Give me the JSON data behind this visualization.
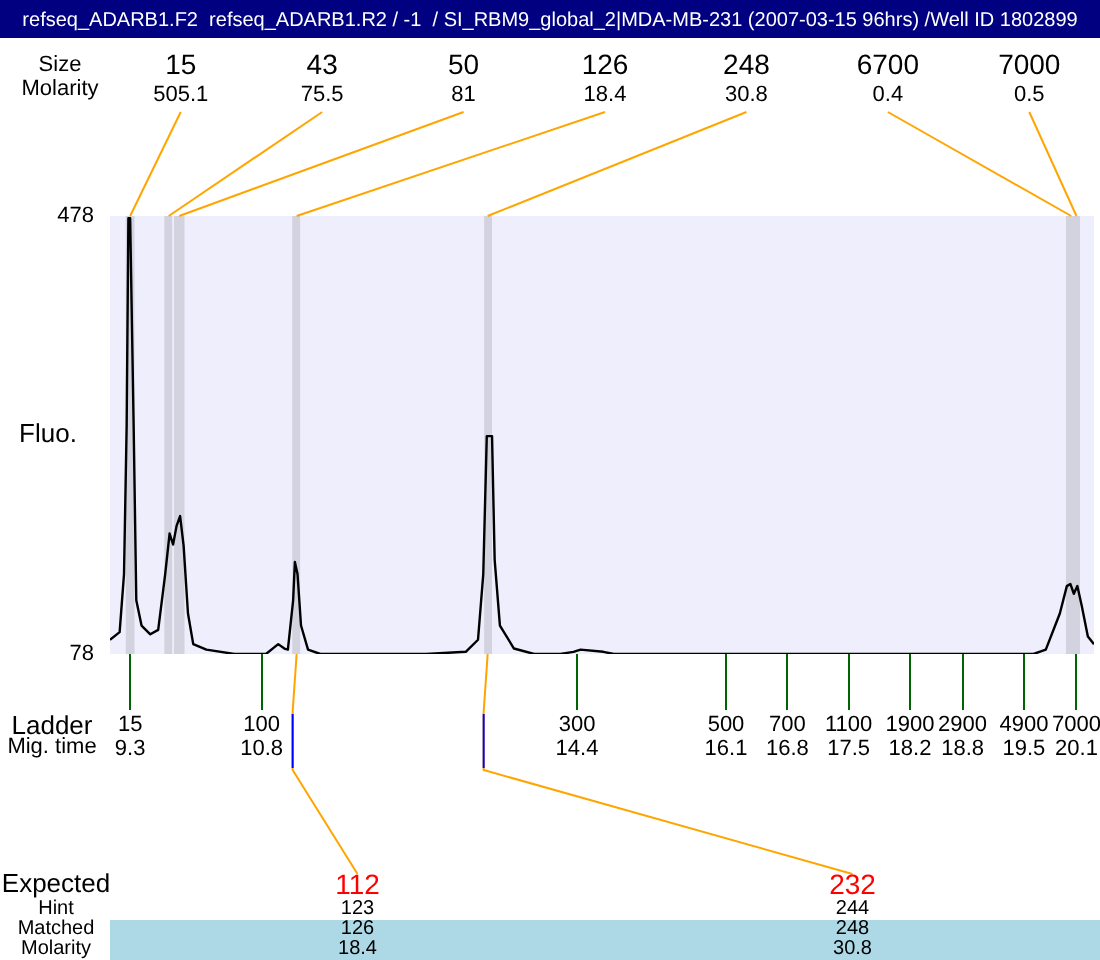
{
  "chart_data": {
    "type": "line",
    "title": "refseq_ADARB1.F2  refseq_ADARB1.R2 / -1  / SI_RBM9_global_2|MDA-MB-231 (2007-03-15 96hrs) /Well ID 1802899",
    "ylabel": "Fluo.",
    "x": [
      9.07,
      9.18,
      9.23,
      9.26,
      9.28,
      9.3,
      9.34,
      9.37,
      9.43,
      9.53,
      9.62,
      9.7,
      9.75,
      9.79,
      9.83,
      9.87,
      9.91,
      9.96,
      10.02,
      10.17,
      10.49,
      10.85,
      10.99,
      11.06,
      11.1,
      11.16,
      11.18,
      11.21,
      11.25,
      11.33,
      11.47,
      12.68,
      13.13,
      13.27,
      13.33,
      13.37,
      13.43,
      13.46,
      13.52,
      13.68,
      13.91,
      14.21,
      14.36,
      14.44,
      14.7,
      14.82,
      15.04,
      19.61,
      19.75,
      19.91,
      19.99,
      20.03,
      20.07,
      20.11,
      20.16,
      20.23,
      20.3
    ],
    "series": [
      {
        "color": "#000000",
        "values": [
          91,
          98,
          151,
          286,
          476,
          476,
          286,
          127,
          104,
          96,
          100,
          151,
          188,
          178,
          195,
          204,
          177,
          115,
          87,
          82,
          78,
          78,
          87,
          83,
          82,
          127,
          162,
          151,
          104,
          82,
          78,
          78,
          80,
          91,
          151,
          277,
          277,
          164,
          104,
          83,
          78,
          78,
          80,
          82,
          80,
          78,
          78,
          78,
          82,
          115,
          140,
          142,
          133,
          140,
          122,
          94,
          87
        ]
      }
    ],
    "xlim": [
      9.07,
      20.3
    ],
    "ylim": [
      78,
      478
    ],
    "yticks": [
      78,
      478
    ],
    "xlabel": "Mig. time",
    "xticks": [
      9.3,
      10.8,
      14.4,
      16.1,
      16.8,
      17.5,
      18.2,
      18.8,
      19.5,
      20.1
    ],
    "bands": [
      {
        "axis": "x",
        "from": 9.25,
        "to": 9.35,
        "color": "#d3d3e0"
      },
      {
        "axis": "x",
        "from": 9.69,
        "to": 9.78,
        "color": "#d3d3e0"
      },
      {
        "axis": "x",
        "from": 9.8,
        "to": 9.92,
        "color": "#d3d3e0"
      },
      {
        "axis": "x",
        "from": 11.15,
        "to": 11.24,
        "color": "#d3d3e0"
      },
      {
        "axis": "x",
        "from": 13.34,
        "to": 13.43,
        "color": "#d3d3e0"
      },
      {
        "axis": "x",
        "from": 19.98,
        "to": 20.14,
        "color": "#d3d3e0"
      }
    ],
    "annotations": [
      "Size\nMolarity",
      "Ladder",
      "15",
      "100",
      "300",
      "500",
      "700",
      "1100",
      "1900",
      "2900",
      "4900",
      "7000",
      "Expected\nHint\nMatched\nMolarity",
      {
        "text": "15\n505.1",
        "x": 9.3,
        "y": 478
      },
      {
        "text": "43\n75.5",
        "x": 9.74,
        "y": 478
      },
      {
        "text": "50\n81",
        "x": 9.86,
        "y": 478
      },
      {
        "text": "126\n18.4",
        "x": 11.2,
        "y": 478
      },
      {
        "text": "248\n30.8",
        "x": 13.38,
        "y": 478
      },
      {
        "text": "6700\n0.4",
        "x": 20.04,
        "y": 478
      },
      {
        "text": "7000\n0.5",
        "x": 20.1,
        "y": 478
      },
      {
        "text": "112\n123\n126\n18.4",
        "x": 11.2,
        "y": 78
      },
      {
        "text": "232\n244\n248\n30.8",
        "x": 13.38,
        "y": 78
      }
    ],
    "grid": false,
    "legend": false,
    "marker": "none",
    "line_style": "solid"
  }
}
